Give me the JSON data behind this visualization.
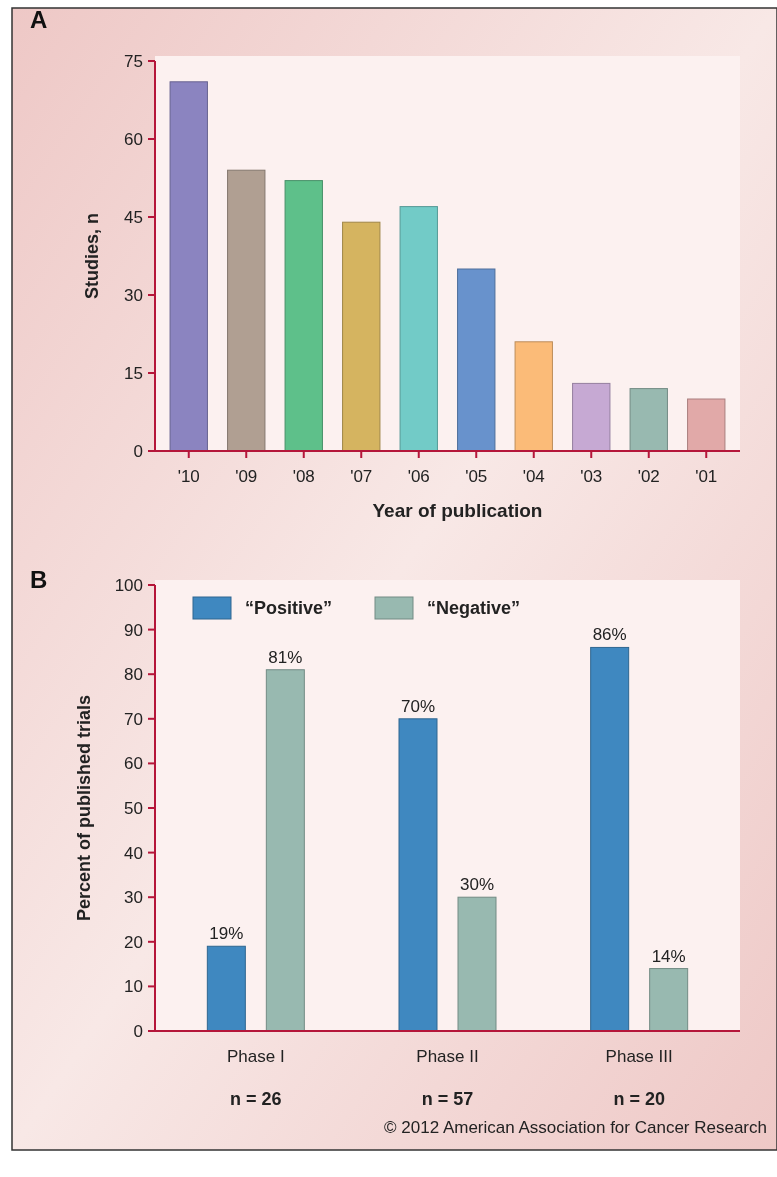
{
  "chart_data": [
    {
      "type": "bar",
      "title": "A",
      "xlabel": "Year of publication",
      "ylabel": "Studies, n",
      "categories": [
        "'10",
        "'09",
        "'08",
        "'07",
        "'06",
        "'05",
        "'04",
        "'03",
        "'02",
        "'01"
      ],
      "values": [
        71,
        54,
        52,
        44,
        47,
        35,
        21,
        13,
        12,
        10
      ],
      "colors": [
        "#8b84c0",
        "#b09f92",
        "#5ec08a",
        "#d5b460",
        "#72cbc7",
        "#6892cc",
        "#fbbb78",
        "#c6a9d3",
        "#98b9b0",
        "#e1a9a8"
      ],
      "ylim": [
        0,
        75
      ],
      "yticks": [
        0,
        15,
        30,
        45,
        60,
        75
      ],
      "grid": false,
      "legend": false
    },
    {
      "type": "bar",
      "title": "B",
      "ylabel": "Percent of published trials",
      "categories": [
        "Phase I",
        "Phase II",
        "Phase III"
      ],
      "series": [
        {
          "name": "“Positive”",
          "color": "#3f88c0",
          "values": [
            19,
            70,
            86
          ],
          "value_labels": [
            "19%",
            "70%",
            "86%"
          ]
        },
        {
          "name": "“Negative”",
          "color": "#98b9b0",
          "values": [
            81,
            30,
            14
          ],
          "value_labels": [
            "81%",
            "30%",
            "14%"
          ]
        }
      ],
      "ylim": [
        0,
        100
      ],
      "yticks": [
        0,
        10,
        20,
        30,
        40,
        50,
        60,
        70,
        80,
        90,
        100
      ],
      "grid": false,
      "legend": "top left",
      "annotations": [
        "n = 26",
        "n = 57",
        "n = 20",
        "© 2012 American Association for Cancer Research"
      ]
    }
  ]
}
